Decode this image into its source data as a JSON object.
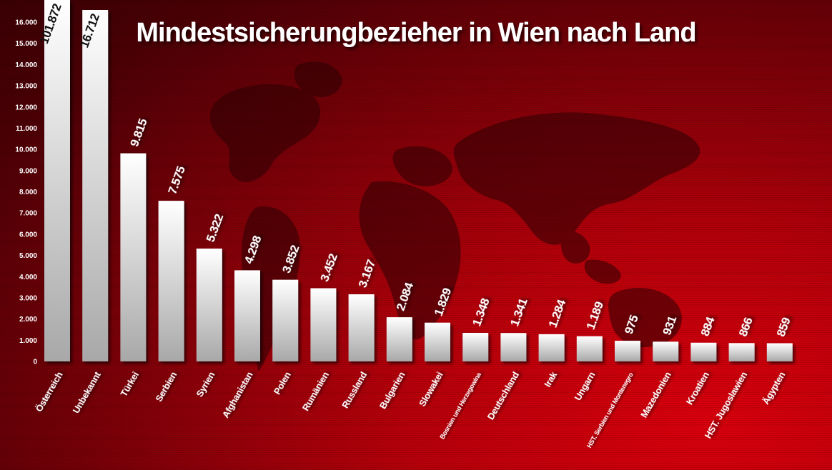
{
  "chart_data": {
    "type": "bar",
    "title": "Mindestsicherungbezieher in Wien nach Land",
    "xlabel": "",
    "ylabel": "",
    "ylim": [
      0,
      16000
    ],
    "yticks": [
      0,
      1000,
      2000,
      3000,
      4000,
      5000,
      6000,
      7000,
      8000,
      9000,
      10000,
      11000,
      12000,
      13000,
      14000,
      15000,
      16000
    ],
    "ytick_labels": [
      "0",
      "1.000",
      "2.000",
      "3.000",
      "4.000",
      "5.000",
      "6.000",
      "7.000",
      "8.000",
      "9.000",
      "10.000",
      "11.000",
      "12.000",
      "13.000",
      "14.000",
      "15.000",
      "16.000"
    ],
    "categories": [
      "Österreich",
      "Unbekannt",
      "Türkei",
      "Serbien",
      "Syrien",
      "Afghanistan",
      "Polen",
      "Rumänien",
      "Russland",
      "Bulgarien",
      "Slowakei",
      "Bosnien und Herzegowina",
      "Deutschland",
      "Irak",
      "Ungarn",
      "HST. Serbien und Montenegro",
      "Mazedonien",
      "Kroatien",
      "HST. Jugoslawien",
      "Ägypten"
    ],
    "values": [
      101872,
      16712,
      9815,
      7575,
      5322,
      4298,
      3852,
      3452,
      3167,
      2084,
      1829,
      1348,
      1341,
      1284,
      1189,
      975,
      931,
      884,
      866,
      859
    ],
    "value_labels": [
      "101.872",
      "16.712",
      "9.815",
      "7.575",
      "5.322",
      "4.298",
      "3.852",
      "3.452",
      "3.167",
      "2.084",
      "1.829",
      "1.348",
      "1.341",
      "1.284",
      "1.189",
      "975",
      "931",
      "884",
      "866",
      "859"
    ],
    "colors": {
      "bar_top": "#ffffff",
      "bar_bottom": "#a8a8a8",
      "background_dark": "#3a0004",
      "background_light": "#d8000c"
    },
    "grid": false,
    "legend": "none"
  }
}
